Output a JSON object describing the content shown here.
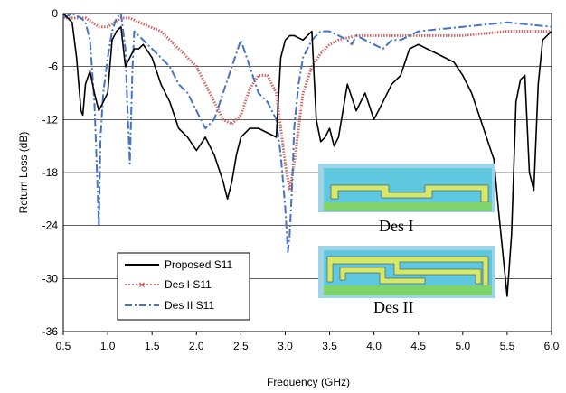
{
  "chart_data": {
    "type": "line",
    "title": "",
    "xlabel": "Frequency (GHz)",
    "ylabel": "Return Loss (dB)",
    "xlim": [
      0.5,
      6.0
    ],
    "ylim": [
      -36,
      0
    ],
    "xticks": [
      "0.5",
      "1.0",
      "1.5",
      "2.0",
      "2.5",
      "3.0",
      "3.5",
      "4.0",
      "4.5",
      "5.0",
      "5.5",
      "6.0"
    ],
    "yticks": [
      "0",
      "-6",
      "-12",
      "-18",
      "-24",
      "-30",
      "-36"
    ],
    "grid": "horizontal",
    "legend_position": "bottom-left",
    "series": [
      {
        "name": "Proposed S11",
        "color": "#000000",
        "style": "solid",
        "x": [
          0.5,
          0.6,
          0.65,
          0.7,
          0.72,
          0.75,
          0.8,
          0.85,
          0.9,
          0.95,
          1.0,
          1.05,
          1.1,
          1.15,
          1.2,
          1.25,
          1.3,
          1.35,
          1.4,
          1.5,
          1.6,
          1.7,
          1.8,
          1.9,
          2.0,
          2.1,
          2.2,
          2.3,
          2.35,
          2.4,
          2.45,
          2.5,
          2.6,
          2.7,
          2.8,
          2.9,
          2.95,
          3.0,
          3.05,
          3.1,
          3.2,
          3.3,
          3.35,
          3.4,
          3.45,
          3.5,
          3.55,
          3.6,
          3.7,
          3.8,
          3.9,
          4.0,
          4.1,
          4.2,
          4.3,
          4.4,
          4.5,
          4.6,
          4.7,
          4.8,
          4.9,
          5.0,
          5.1,
          5.2,
          5.3,
          5.35,
          5.4,
          5.45,
          5.5,
          5.55,
          5.6,
          5.65,
          5.7,
          5.75,
          5.8,
          5.85,
          5.9,
          6.0
        ],
        "y": [
          0,
          -1,
          -5,
          -11,
          -11.5,
          -8,
          -6.5,
          -9,
          -11,
          -10,
          -9,
          -3,
          -2,
          -1.5,
          -6,
          -5,
          -4,
          -4,
          -3.5,
          -5,
          -8,
          -10,
          -13,
          -14,
          -15.5,
          -14,
          -16,
          -19,
          -21,
          -19,
          -16,
          -14,
          -13,
          -13,
          -13.5,
          -14,
          -5,
          -3,
          -2.5,
          -2.5,
          -3,
          -2,
          -12,
          -14.5,
          -14,
          -13,
          -15,
          -14,
          -8,
          -11,
          -9,
          -12,
          -10,
          -8,
          -7,
          -4,
          -3.5,
          -4,
          -4.5,
          -5,
          -5.5,
          -7,
          -9,
          -12,
          -15,
          -16.5,
          -22,
          -27,
          -32,
          -25,
          -10,
          -7.5,
          -7,
          -18,
          -20,
          -8,
          -3,
          -2
        ]
      },
      {
        "name": "Des I S11",
        "color": "#c0504d",
        "style": "dotted-cross",
        "x": [
          0.5,
          0.75,
          0.9,
          1.0,
          1.15,
          1.25,
          1.4,
          1.6,
          1.8,
          2.0,
          2.1,
          2.2,
          2.3,
          2.4,
          2.5,
          2.6,
          2.7,
          2.8,
          2.9,
          3.0,
          3.05,
          3.1,
          3.15,
          3.2,
          3.3,
          3.4,
          3.5,
          3.6,
          3.8,
          4.0,
          4.2,
          4.5,
          5.0,
          5.5,
          6.0
        ],
        "y": [
          -0.5,
          -0.5,
          -1.5,
          -1.5,
          -0.5,
          -0.5,
          -1.2,
          -2,
          -4,
          -6,
          -8,
          -10,
          -12,
          -12.5,
          -11.5,
          -8.5,
          -7,
          -7,
          -9,
          -17,
          -20,
          -17,
          -13,
          -9,
          -6,
          -4.5,
          -3.5,
          -3,
          -2.5,
          -2.5,
          -2.5,
          -2.5,
          -2.5,
          -2,
          -2
        ]
      },
      {
        "name": "Des II S11",
        "color": "#4472c4",
        "style": "dash-dot",
        "x": [
          0.5,
          0.6,
          0.7,
          0.75,
          0.8,
          0.85,
          0.88,
          0.9,
          0.92,
          0.95,
          1.0,
          1.05,
          1.1,
          1.15,
          1.2,
          1.22,
          1.25,
          1.28,
          1.3,
          1.4,
          1.5,
          1.6,
          1.7,
          1.8,
          1.9,
          2.0,
          2.1,
          2.2,
          2.3,
          2.4,
          2.5,
          2.6,
          2.7,
          2.8,
          2.9,
          2.95,
          3.0,
          3.03,
          3.05,
          3.08,
          3.1,
          3.15,
          3.2,
          3.3,
          3.4,
          3.5,
          3.6,
          3.7,
          3.75,
          3.8,
          3.9,
          4.0,
          4.1,
          4.2,
          4.3,
          4.5,
          5.0,
          5.5,
          6.0
        ],
        "y": [
          -0.5,
          0,
          -0.5,
          -1,
          -3,
          -10,
          -18,
          -24,
          -14,
          -9,
          -5,
          -2,
          -0.5,
          0,
          -4,
          -10,
          -17,
          -6,
          -2,
          -3,
          -4,
          -5,
          -6,
          -8,
          -9,
          -11,
          -13,
          -12,
          -9,
          -6,
          -3,
          -6,
          -9,
          -10,
          -12,
          -16,
          -22,
          -27,
          -25,
          -19,
          -13,
          -8,
          -5,
          -3,
          -2,
          -2,
          -2.5,
          -3,
          -3.5,
          -2.5,
          -3,
          -3.5,
          -4,
          -3,
          -3,
          -2,
          -1.5,
          -1,
          -1.5
        ]
      }
    ],
    "legend": [
      "Proposed S11",
      "Des I S11",
      "Des II S11"
    ],
    "annotations": [
      "Des I",
      "Des II"
    ]
  }
}
